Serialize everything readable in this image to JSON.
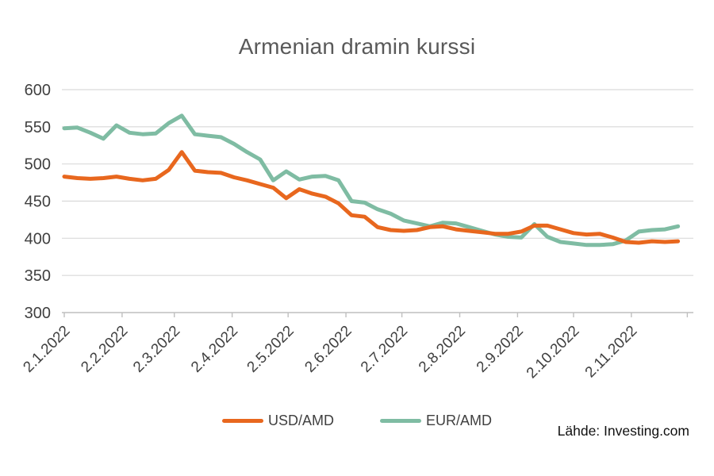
{
  "source": {
    "label": "Lähde: Investing.com"
  },
  "colors": {
    "usd_line": "#e8671e",
    "eur_line": "#7fbca3",
    "gridline": "#d9d9d9",
    "axis": "#bfbfbf",
    "axis_label": "#404040",
    "title": "#595959"
  },
  "chart_data": {
    "type": "line",
    "title": "Armenian dramin kurssi",
    "x_unit": "weekly",
    "x": [
      "2.1.2022",
      "9.1.2022",
      "16.1.2022",
      "23.1.2022",
      "30.1.2022",
      "6.2.2022",
      "13.2.2022",
      "20.2.2022",
      "27.2.2022",
      "6.3.2022",
      "13.3.2022",
      "20.3.2022",
      "27.3.2022",
      "3.4.2022",
      "10.4.2022",
      "17.4.2022",
      "24.4.2022",
      "1.5.2022",
      "8.5.2022",
      "15.5.2022",
      "22.5.2022",
      "29.5.2022",
      "5.6.2022",
      "12.6.2022",
      "19.6.2022",
      "26.6.2022",
      "3.7.2022",
      "10.7.2022",
      "17.7.2022",
      "24.7.2022",
      "31.7.2022",
      "7.8.2022",
      "14.8.2022",
      "21.8.2022",
      "28.8.2022",
      "4.9.2022",
      "11.9.2022",
      "18.9.2022",
      "25.9.2022",
      "2.10.2022",
      "9.10.2022",
      "16.10.2022",
      "23.10.2022",
      "30.10.2022",
      "6.11.2022",
      "13.11.2022",
      "20.11.2022",
      "27.11.2022"
    ],
    "x_tick_labels": [
      "2.1.2022",
      "2.2.2022",
      "2.3.2022",
      "2.4.2022",
      "2.5.2022",
      "2.6.2022",
      "2.7.2022",
      "2.8.2022",
      "2.9.2022",
      "2.10.2022",
      "2.11.2022"
    ],
    "series": [
      {
        "name": "USD/AMD",
        "color": "#e8671e",
        "values": [
          483,
          481,
          480,
          481,
          483,
          480,
          478,
          480,
          492,
          516,
          491,
          489,
          488,
          482,
          478,
          473,
          468,
          454,
          466,
          460,
          456,
          447,
          431,
          429,
          415,
          411,
          410,
          411,
          415,
          416,
          412,
          410,
          408,
          406,
          406,
          409,
          417,
          417,
          412,
          407,
          405,
          406,
          401,
          395,
          394,
          396,
          395,
          396
        ]
      },
      {
        "name": "EUR/AMD",
        "color": "#7fbca3",
        "values": [
          548,
          549,
          542,
          534,
          552,
          542,
          540,
          541,
          555,
          565,
          540,
          538,
          536,
          527,
          516,
          506,
          478,
          490,
          479,
          483,
          484,
          478,
          450,
          448,
          439,
          433,
          424,
          420,
          416,
          421,
          420,
          415,
          410,
          405,
          402,
          401,
          419,
          402,
          395,
          393,
          391,
          391,
          392,
          397,
          409,
          411,
          412,
          416
        ]
      }
    ],
    "ylim": [
      300,
      600
    ],
    "yticks": [
      300,
      350,
      400,
      450,
      500,
      550,
      600
    ],
    "ytick_step": 50,
    "grid": "horizontal",
    "legend_position": "bottom"
  }
}
